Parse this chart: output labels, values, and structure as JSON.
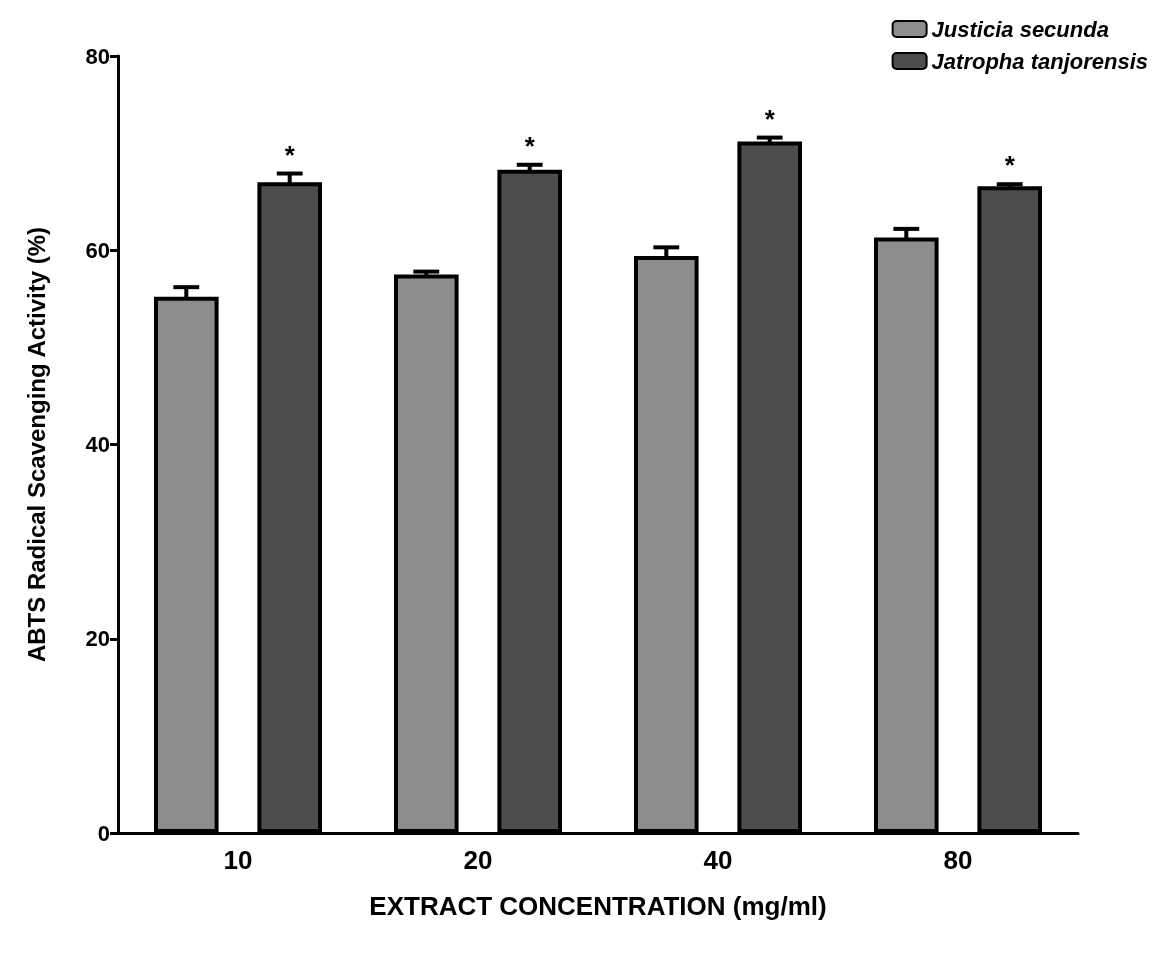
{
  "chart_data": {
    "type": "bar",
    "xlabel": "EXTRACT CONCENTRATION (mg/ml)",
    "ylabel": "ABTS Radical Scavenging Activity (%)",
    "categories": [
      "10",
      "20",
      "40",
      "80"
    ],
    "series": [
      {
        "name": "Justicia secunda",
        "color": "#8c8c8c",
        "values": [
          55.2,
          57.5,
          59.4,
          61.3
        ],
        "errors": [
          1,
          0.3,
          0.9,
          0.9
        ]
      },
      {
        "name": "Jatropha tanjorensis",
        "color": "#4d4d4d",
        "values": [
          67.0,
          68.3,
          71.2,
          66.6
        ],
        "errors": [
          0.9,
          0.5,
          0.4,
          0.2
        ],
        "value_labels": [
          "*",
          "*",
          "*",
          "*"
        ]
      }
    ],
    "ylim": [
      0,
      80
    ],
    "yticks": [
      0,
      20,
      40,
      60,
      80
    ],
    "grid": false,
    "legend": "top right"
  }
}
